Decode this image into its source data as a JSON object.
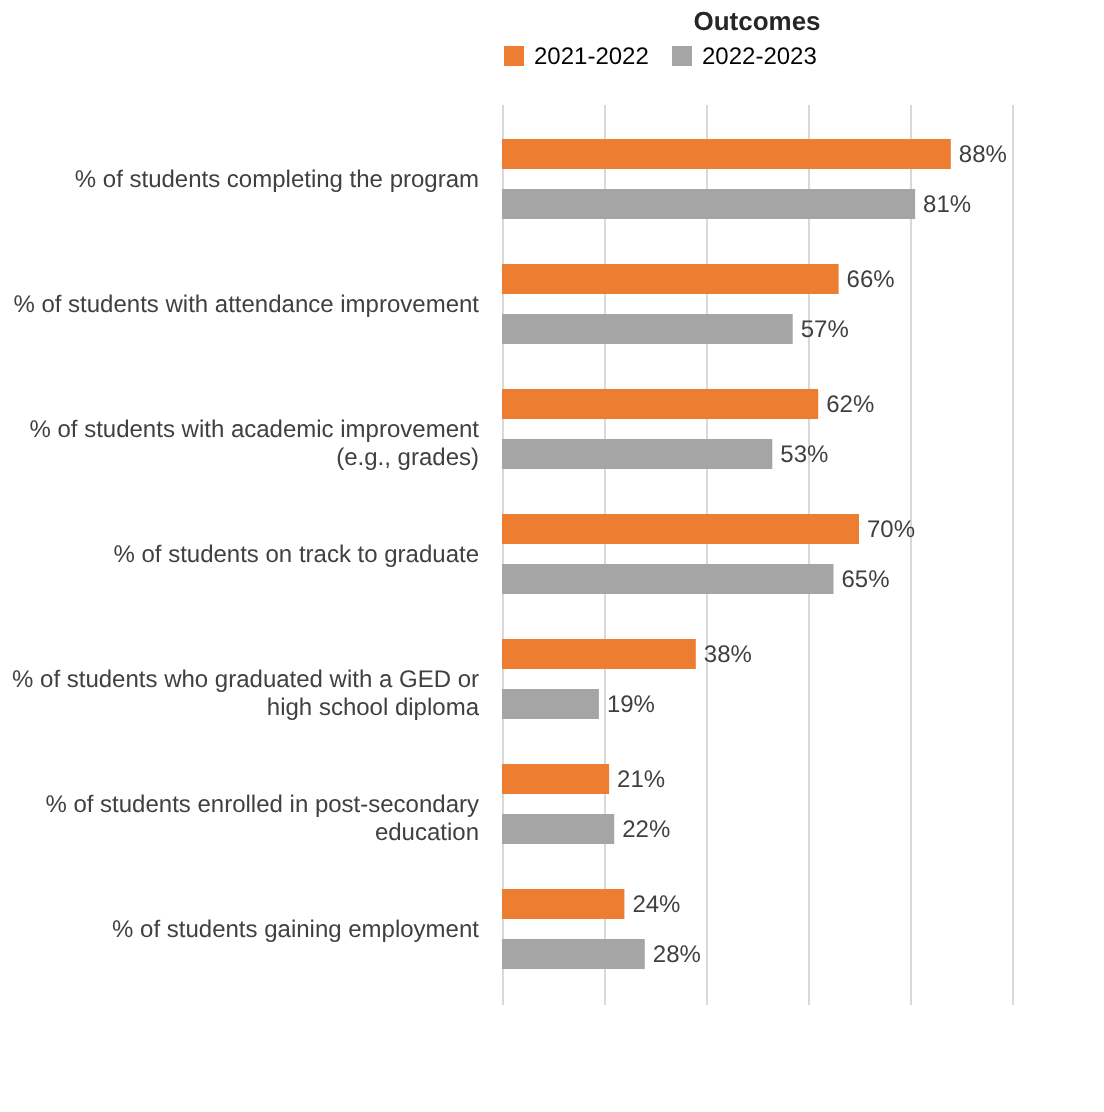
{
  "chart_data": {
    "type": "bar",
    "orientation": "horizontal",
    "title": "Outcomes",
    "categories": [
      "% of students completing the program",
      "% of students with attendance improvement",
      "% of students with academic improvement (e.g., grades)",
      "% of students on track to graduate",
      "% of students who graduated with a GED or high school diploma",
      "% of students enrolled in post-secondary education",
      "% of students gaining employment"
    ],
    "series": [
      {
        "name": "2021-2022",
        "color": "#ed7d31",
        "values": [
          88,
          66,
          62,
          70,
          38,
          21,
          24
        ],
        "value_labels": [
          "88%",
          "66%",
          "62%",
          "70%",
          "38%",
          "21%",
          "24%"
        ]
      },
      {
        "name": "2022-2023",
        "color": "#a5a5a5",
        "values": [
          81,
          57,
          53,
          65,
          19,
          22,
          28
        ],
        "value_labels": [
          "81%",
          "57%",
          "53%",
          "65%",
          "19%",
          "22%",
          "28%"
        ]
      }
    ],
    "xlim": [
      0,
      100
    ],
    "xticks": [
      {
        "value": 0,
        "label": null
      },
      {
        "value": 20,
        "label": null
      },
      {
        "value": 40,
        "label": null
      },
      {
        "value": 60,
        "label": null
      },
      {
        "value": 80,
        "label": null
      },
      {
        "value": 100,
        "label": null
      }
    ],
    "tick_labels": "y",
    "grid": "x",
    "legend": "top"
  }
}
